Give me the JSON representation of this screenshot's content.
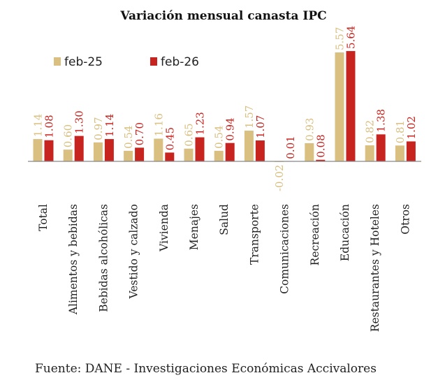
{
  "chart_data": {
    "type": "bar",
    "title": "Variación mensual canasta IPC",
    "categories": [
      "Total",
      "Alimentos y bebidas",
      "Bebidas alcohólicas",
      "Vestido y calzado",
      "Vivienda",
      "Menajes",
      "Salud",
      "Transporte",
      "Comunicaciones",
      "Recreación",
      "Educación",
      "Restaurantes y Hoteles",
      "Otros"
    ],
    "series": [
      {
        "name": "feb-25",
        "color": "#d9bf80",
        "values": [
          1.14,
          0.6,
          0.97,
          0.54,
          1.16,
          0.65,
          0.54,
          1.57,
          -0.02,
          0.93,
          5.57,
          0.82,
          0.81
        ],
        "labels": [
          "1.14",
          "0.60",
          "0.97",
          "0.54",
          "1.16",
          "0.65",
          "0.54",
          "1.57",
          "-0.02",
          "0.93",
          "5.57",
          "0.82",
          "0.81"
        ]
      },
      {
        "name": "feb-26",
        "color": "#c8241f",
        "values": [
          1.08,
          1.3,
          1.14,
          0.7,
          0.45,
          1.23,
          0.94,
          1.07,
          0.01,
          0.08,
          5.64,
          1.38,
          1.02
        ],
        "labels": [
          "1.08",
          "1.30",
          "1.14",
          "0.70",
          "0.45",
          "1.23",
          "0.94",
          "1.07",
          "0.01",
          "0.08",
          "5.64",
          "1.38",
          "1.02"
        ]
      }
    ],
    "legend_position": "top-left",
    "grid": false,
    "ylim": [
      -0.1,
      5.7
    ]
  },
  "footer": {
    "source": "Fuente: DANE - Investigaciones Económicas Accivalores"
  }
}
